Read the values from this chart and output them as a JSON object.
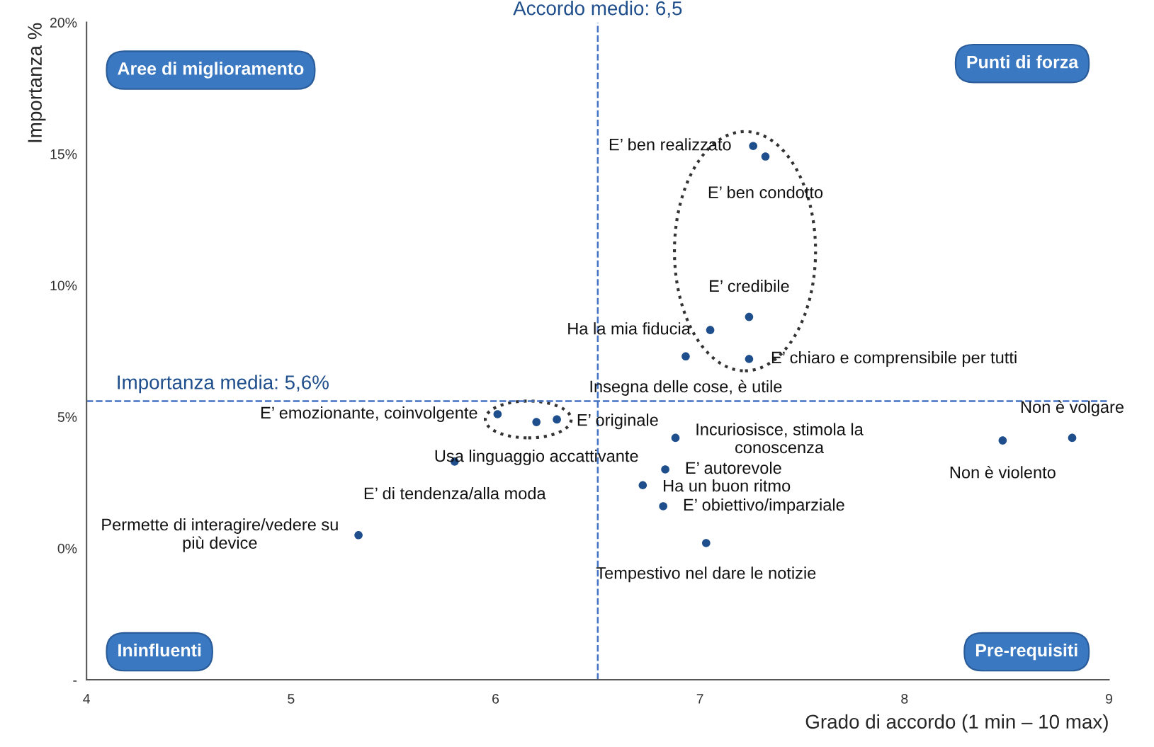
{
  "chart_data": {
    "type": "scatter",
    "xlabel": "Grado di accordo (1 min – 10 max)",
    "ylabel": "Importanza %",
    "x": [
      7.26,
      7.32,
      7.24,
      7.05,
      7.24,
      6.93,
      6.01,
      6.3,
      6.2,
      5.8,
      5.33,
      6.88,
      6.83,
      6.72,
      6.82,
      7.03,
      8.48,
      8.82
    ],
    "series": [
      {
        "color": "#1f4e8c",
        "values": [
          15.3,
          14.9,
          8.8,
          8.3,
          7.2,
          7.3,
          5.1,
          4.9,
          4.8,
          3.3,
          0.5,
          4.2,
          3.0,
          2.4,
          1.6,
          0.2,
          4.1,
          4.2
        ]
      }
    ],
    "xlim": [
      4,
      9
    ],
    "xticks": [
      4,
      5,
      6,
      7,
      8,
      9
    ],
    "ylim": [
      -5,
      20
    ],
    "yticks": [
      {
        "value": -5,
        "label": "-"
      },
      {
        "value": 0,
        "label": "0%"
      },
      {
        "value": 5,
        "label": "5%"
      },
      {
        "value": 10,
        "label": "10%"
      },
      {
        "value": 15,
        "label": "15%"
      },
      {
        "value": 20,
        "label": "20%"
      }
    ],
    "ref_lines": [
      {
        "axis": "x",
        "value": 6.5,
        "label": "Accordo medio: 6,5",
        "color": "#4472c4",
        "line_style": "dashed"
      },
      {
        "axis": "y",
        "value": 5.6,
        "label": "Importanza media: 5,6%",
        "color": "#4472c4",
        "line_style": "dashed"
      }
    ],
    "annotations": [
      {
        "text": "E’ ben realizzato",
        "x": 7.26,
        "y": 15.3
      },
      {
        "text": "E’ ben condotto",
        "x": 7.32,
        "y": 14.9
      },
      {
        "text": "E’ credibile",
        "x": 7.24,
        "y": 8.8
      },
      {
        "text": "Ha la mia fiducia",
        "x": 7.05,
        "y": 8.3
      },
      {
        "text": "E’ chiaro e comprensibile per tutti",
        "x": 7.24,
        "y": 7.2
      },
      {
        "text": "Insegna delle cose, è utile",
        "x": 6.93,
        "y": 7.3
      },
      {
        "text": "E’ emozionante, coinvolgente",
        "x": 6.01,
        "y": 5.1
      },
      {
        "text": "E’ originale",
        "x": 6.3,
        "y": 4.9
      },
      {
        "text": "Usa linguaggio accattivante",
        "x": 6.2,
        "y": 4.8
      },
      {
        "text": "E’ di tendenza/alla moda",
        "x": 5.8,
        "y": 3.3
      },
      {
        "text": "Permette di interagire/vedere su più device",
        "x": 5.33,
        "y": 0.5
      },
      {
        "text": "Incuriosisce, stimola la conoscenza",
        "x": 6.88,
        "y": 4.2
      },
      {
        "text": "E’ autorevole",
        "x": 6.83,
        "y": 3.0
      },
      {
        "text": "Ha un buon ritmo",
        "x": 6.72,
        "y": 2.4
      },
      {
        "text": "E’ obiettivo/imparziale",
        "x": 6.82,
        "y": 1.6
      },
      {
        "text": "Tempestivo nel dare le notizie",
        "x": 7.03,
        "y": 0.2
      },
      {
        "text": "Non è violento",
        "x": 8.48,
        "y": 4.1
      },
      {
        "text": "Non è volgare",
        "x": 8.82,
        "y": 4.2
      },
      "Aree di miglioramento",
      "Punti di forza",
      "Ininfluenti",
      "Pre-requisiti"
    ],
    "marker": "circle",
    "grid": false,
    "legend": false
  }
}
